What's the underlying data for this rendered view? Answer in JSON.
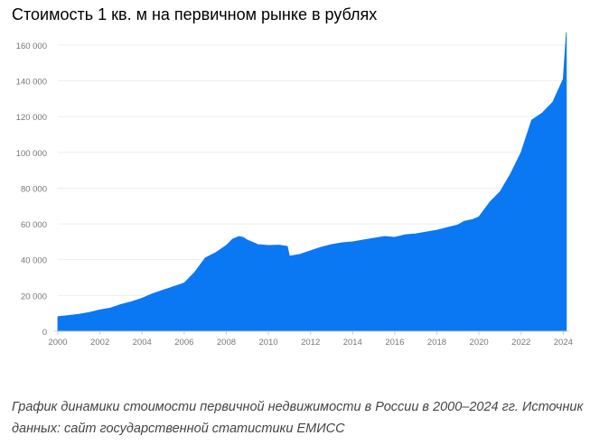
{
  "title": "Стоимость 1 кв. м на первичном рынке в рублях",
  "caption": {
    "line1": "График динамики стоимости первичной недвижимости в России в 2000–2024 гг. Источник",
    "line2": "данных: сайт государственной статистики ЕМИСС"
  },
  "colors": {
    "fill": "#0a78f2",
    "axis": "#cccccc",
    "tick_text": "#777777",
    "grid": "#e5e5e5"
  },
  "chart_data": {
    "type": "area",
    "title": "Стоимость 1 кв. м на первичном рынке в рублях",
    "xlabel": "",
    "ylabel": "",
    "xlim": [
      2000,
      2024.2
    ],
    "ylim": [
      0,
      166000
    ],
    "x_ticks": [
      "2000",
      "2002",
      "2004",
      "2006",
      "2008",
      "2010",
      "2012",
      "2014",
      "2016",
      "2018",
      "2020",
      "2022",
      "2024"
    ],
    "y_ticks": [
      "0",
      "20 000",
      "40 000",
      "60 000",
      "80 000",
      "100 000",
      "120 000",
      "140 000",
      "160 000"
    ],
    "grid": true,
    "legend": "none",
    "series": [
      {
        "x": [
          2000,
          2000.5,
          2001,
          2001.5,
          2002,
          2002.5,
          2003,
          2003.5,
          2004,
          2004.5,
          2005,
          2005.5,
          2006,
          2006.5,
          2007,
          2007.5,
          2008,
          2008.3,
          2008.6,
          2008.8,
          2009,
          2009.5,
          2010,
          2010.5,
          2010.9,
          2011,
          2011.5,
          2012,
          2012.5,
          2013,
          2013.5,
          2014,
          2014.5,
          2015,
          2015.5,
          2016,
          2016.5,
          2017,
          2017.5,
          2018,
          2018.5,
          2019,
          2019.3,
          2019.7,
          2020,
          2020.5,
          2021,
          2021.5,
          2022,
          2022.5,
          2023,
          2023.5,
          2024,
          2024.15
        ],
        "y": [
          8200,
          8800,
          9500,
          10500,
          12000,
          13000,
          15000,
          16500,
          18500,
          21000,
          23000,
          25000,
          27000,
          33000,
          41000,
          44000,
          48000,
          51500,
          53000,
          52500,
          51000,
          48500,
          48000,
          48200,
          47500,
          42000,
          43000,
          45000,
          47000,
          48500,
          49500,
          50000,
          51000,
          52000,
          53000,
          52500,
          54000,
          54500,
          55500,
          56500,
          58000,
          59500,
          61500,
          62500,
          64000,
          72000,
          78000,
          88000,
          100000,
          118000,
          122000,
          128000,
          141000,
          167000
        ]
      }
    ]
  }
}
